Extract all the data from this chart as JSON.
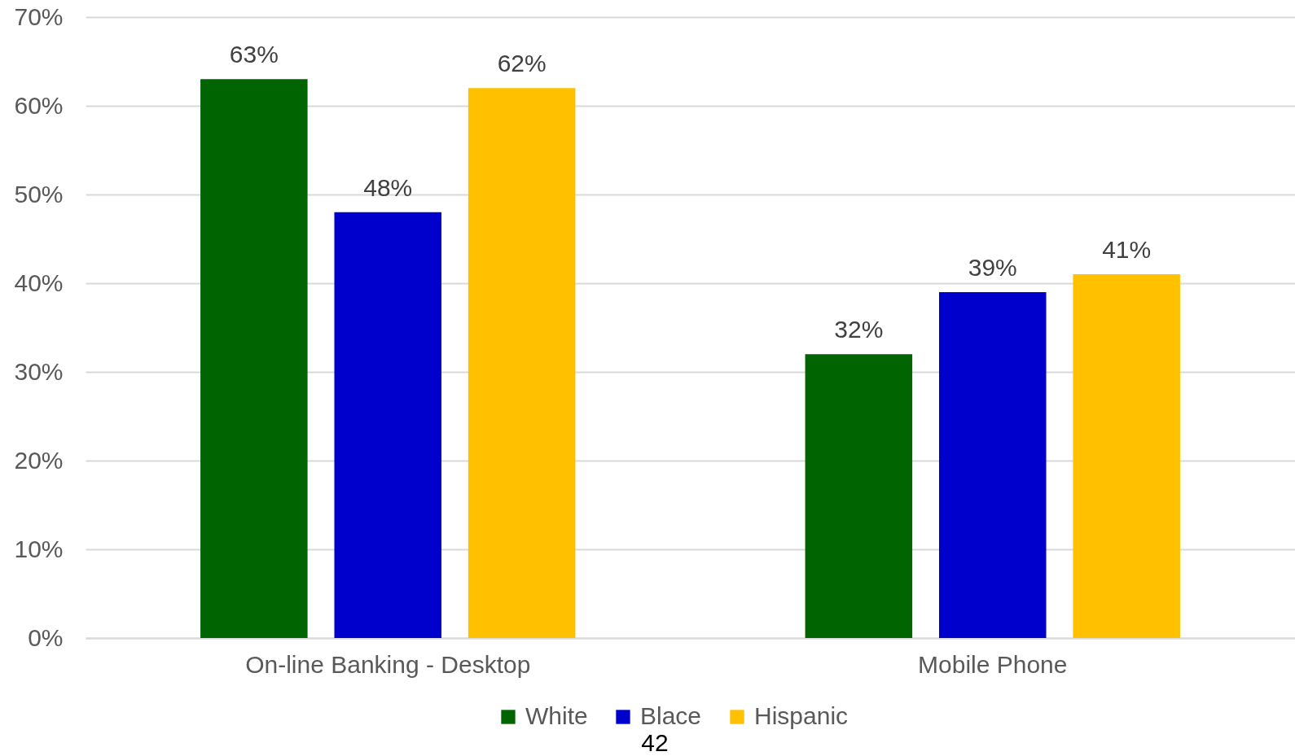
{
  "chart_data": {
    "type": "bar",
    "categories": [
      "On-line Banking - Desktop",
      "Mobile Phone"
    ],
    "series": [
      {
        "name": "White",
        "color": "#006400",
        "values": [
          63,
          32
        ],
        "value_labels": [
          "63%",
          "32%"
        ]
      },
      {
        "name": "Blace",
        "color": "#0000cc",
        "values": [
          48,
          39
        ],
        "value_labels": [
          "48%",
          "39%"
        ]
      },
      {
        "name": "Hispanic",
        "color": "#ffc000",
        "values": [
          62,
          41
        ],
        "value_labels": [
          "62%",
          "41%"
        ]
      }
    ],
    "ylim": [
      0,
      70
    ],
    "yticks": [
      {
        "value": 0,
        "label": "0%"
      },
      {
        "value": 10,
        "label": "10%"
      },
      {
        "value": 20,
        "label": "20%"
      },
      {
        "value": 30,
        "label": "30%"
      },
      {
        "value": 40,
        "label": "40%"
      },
      {
        "value": 50,
        "label": "50%"
      },
      {
        "value": 60,
        "label": "60%"
      },
      {
        "value": 70,
        "label": "70%"
      }
    ],
    "grid": "y",
    "legend": "bottom",
    "annotations": [
      "42"
    ]
  }
}
